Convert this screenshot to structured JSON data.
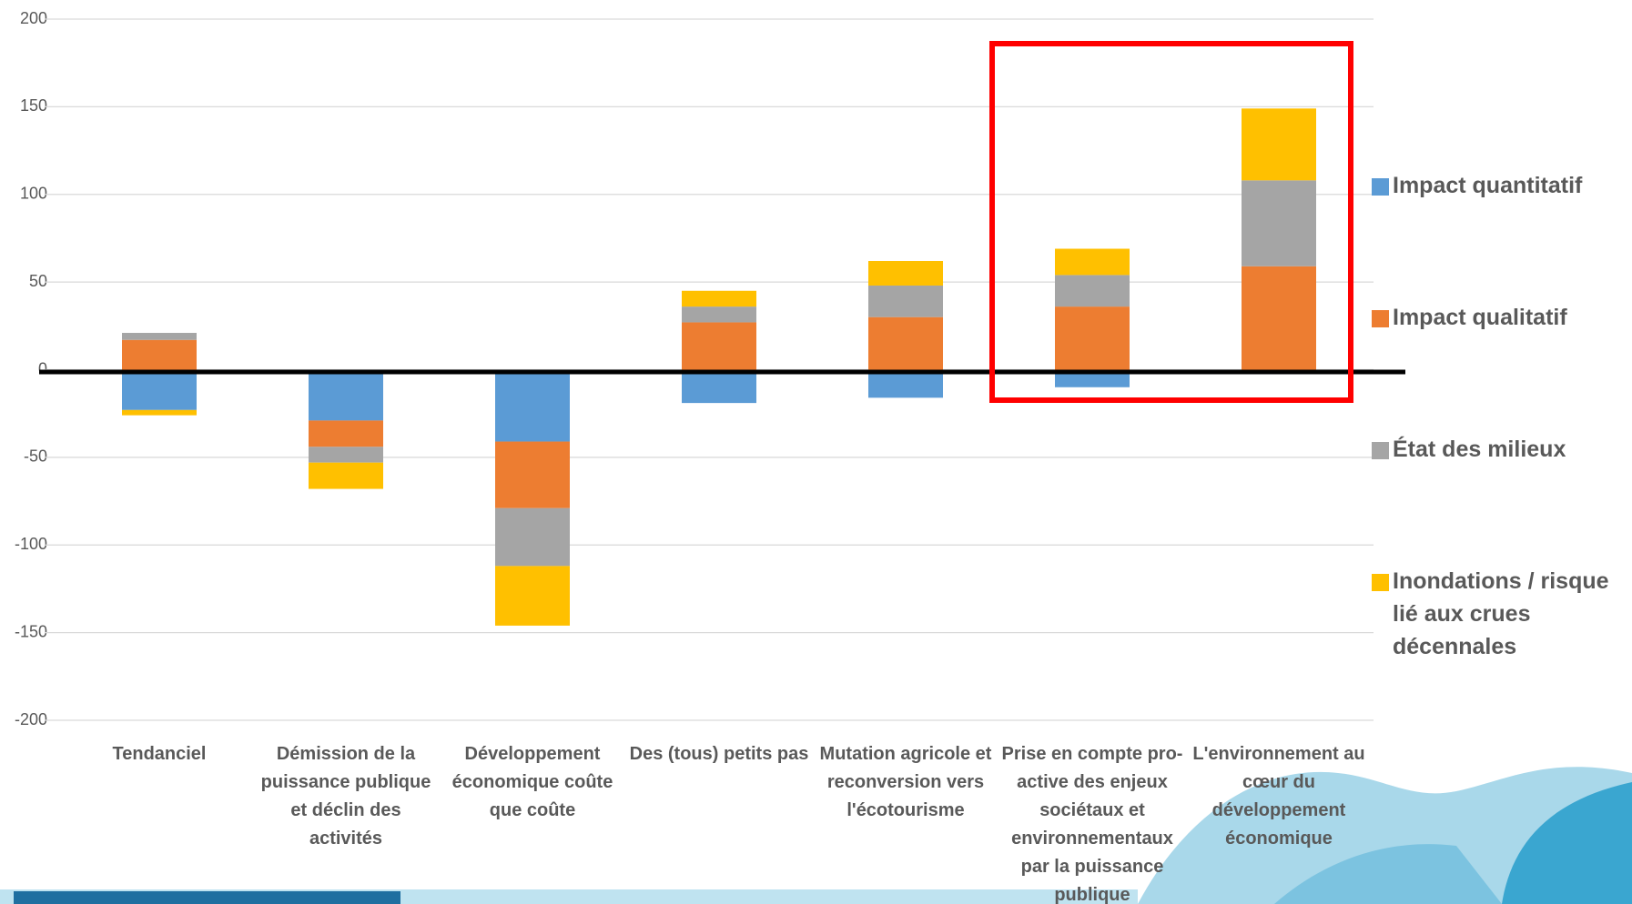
{
  "chart_data": {
    "type": "bar",
    "stacked": true,
    "categories": [
      "Tendanciel",
      "Démission de la puissance publique et déclin des activités",
      "Développement économique coûte que coûte",
      "Des (tous) petits pas",
      "Mutation agricole et reconversion vers l'écotourisme",
      "Prise en compte pro-active des enjeux sociétaux et environnementaux par la puissance publique",
      "L'environnement au cœur du développement économique"
    ],
    "series": [
      {
        "name": "Impact quantitatif",
        "color": "#5b9bd5",
        "values": [
          -23,
          -29,
          -41,
          -19,
          -16,
          -10,
          0
        ]
      },
      {
        "name": "Impact qualitatif",
        "color": "#ed7d31",
        "values": [
          17,
          -15,
          -38,
          27,
          30,
          36,
          59
        ]
      },
      {
        "name": "État des milieux",
        "color": "#a5a5a5",
        "values": [
          4,
          -9,
          -33,
          9,
          18,
          18,
          49
        ]
      },
      {
        "name": "Inondations / risque lié aux crues décennales",
        "color": "#ffc000",
        "values": [
          -3,
          -15,
          -34,
          9,
          14,
          15,
          41
        ]
      }
    ],
    "ylim": [
      -200,
      200
    ],
    "yticks": [
      -200,
      -150,
      -100,
      -50,
      0,
      50,
      100,
      150,
      200
    ],
    "grid": true,
    "legend_position": "right"
  }
}
